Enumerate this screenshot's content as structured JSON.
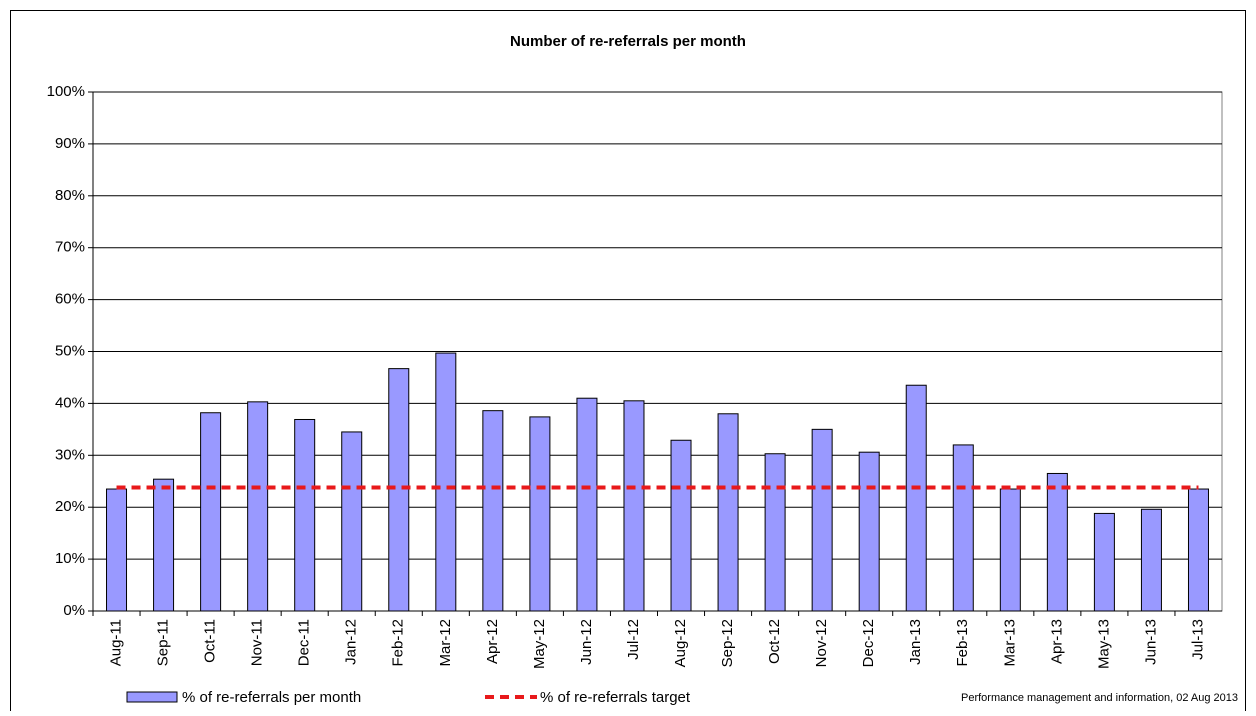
{
  "chart_data": {
    "type": "bar",
    "title": "Number of re-referrals per month",
    "categories": [
      "Aug-11",
      "Sep-11",
      "Oct-11",
      "Nov-11",
      "Dec-11",
      "Jan-12",
      "Feb-12",
      "Mar-12",
      "Apr-12",
      "May-12",
      "Jun-12",
      "Jul-12",
      "Aug-12",
      "Sep-12",
      "Oct-12",
      "Nov-12",
      "Dec-12",
      "Jan-13",
      "Feb-13",
      "Mar-13",
      "Apr-13",
      "May-13",
      "Jun-13",
      "Jul-13"
    ],
    "series": [
      {
        "name": "% of re-referrals per month",
        "type": "bar",
        "color": "#9999ff",
        "values": [
          23.5,
          25.4,
          38.2,
          40.3,
          36.9,
          34.5,
          46.7,
          49.7,
          38.6,
          37.4,
          41.0,
          40.5,
          32.9,
          38.0,
          30.3,
          35.0,
          30.6,
          43.5,
          32.0,
          23.5,
          26.5,
          18.8,
          19.6,
          23.5
        ]
      },
      {
        "name": "% of re-referrals target",
        "type": "line",
        "color": "#e8191b",
        "values": [
          23.8,
          23.8,
          23.8,
          23.8,
          23.8,
          23.8,
          23.8,
          23.8,
          23.8,
          23.8,
          23.8,
          23.8,
          23.8,
          23.8,
          23.8,
          23.8,
          23.8,
          23.8,
          23.8,
          23.8,
          23.8,
          23.8,
          23.8,
          23.8
        ]
      }
    ],
    "ylim": [
      0,
      100
    ],
    "yticks": [
      {
        "value": 0,
        "label": "0%"
      },
      {
        "value": 10,
        "label": "10%"
      },
      {
        "value": 20,
        "label": "20%"
      },
      {
        "value": 30,
        "label": "30%"
      },
      {
        "value": 40,
        "label": "40%"
      },
      {
        "value": 50,
        "label": "50%"
      },
      {
        "value": 60,
        "label": "60%"
      },
      {
        "value": 70,
        "label": "70%"
      },
      {
        "value": 80,
        "label": "80%"
      },
      {
        "value": 90,
        "label": "90%"
      },
      {
        "value": 100,
        "label": "100%"
      }
    ],
    "grid": true,
    "footnote": "Performance management and information, 02 Aug 2013"
  }
}
